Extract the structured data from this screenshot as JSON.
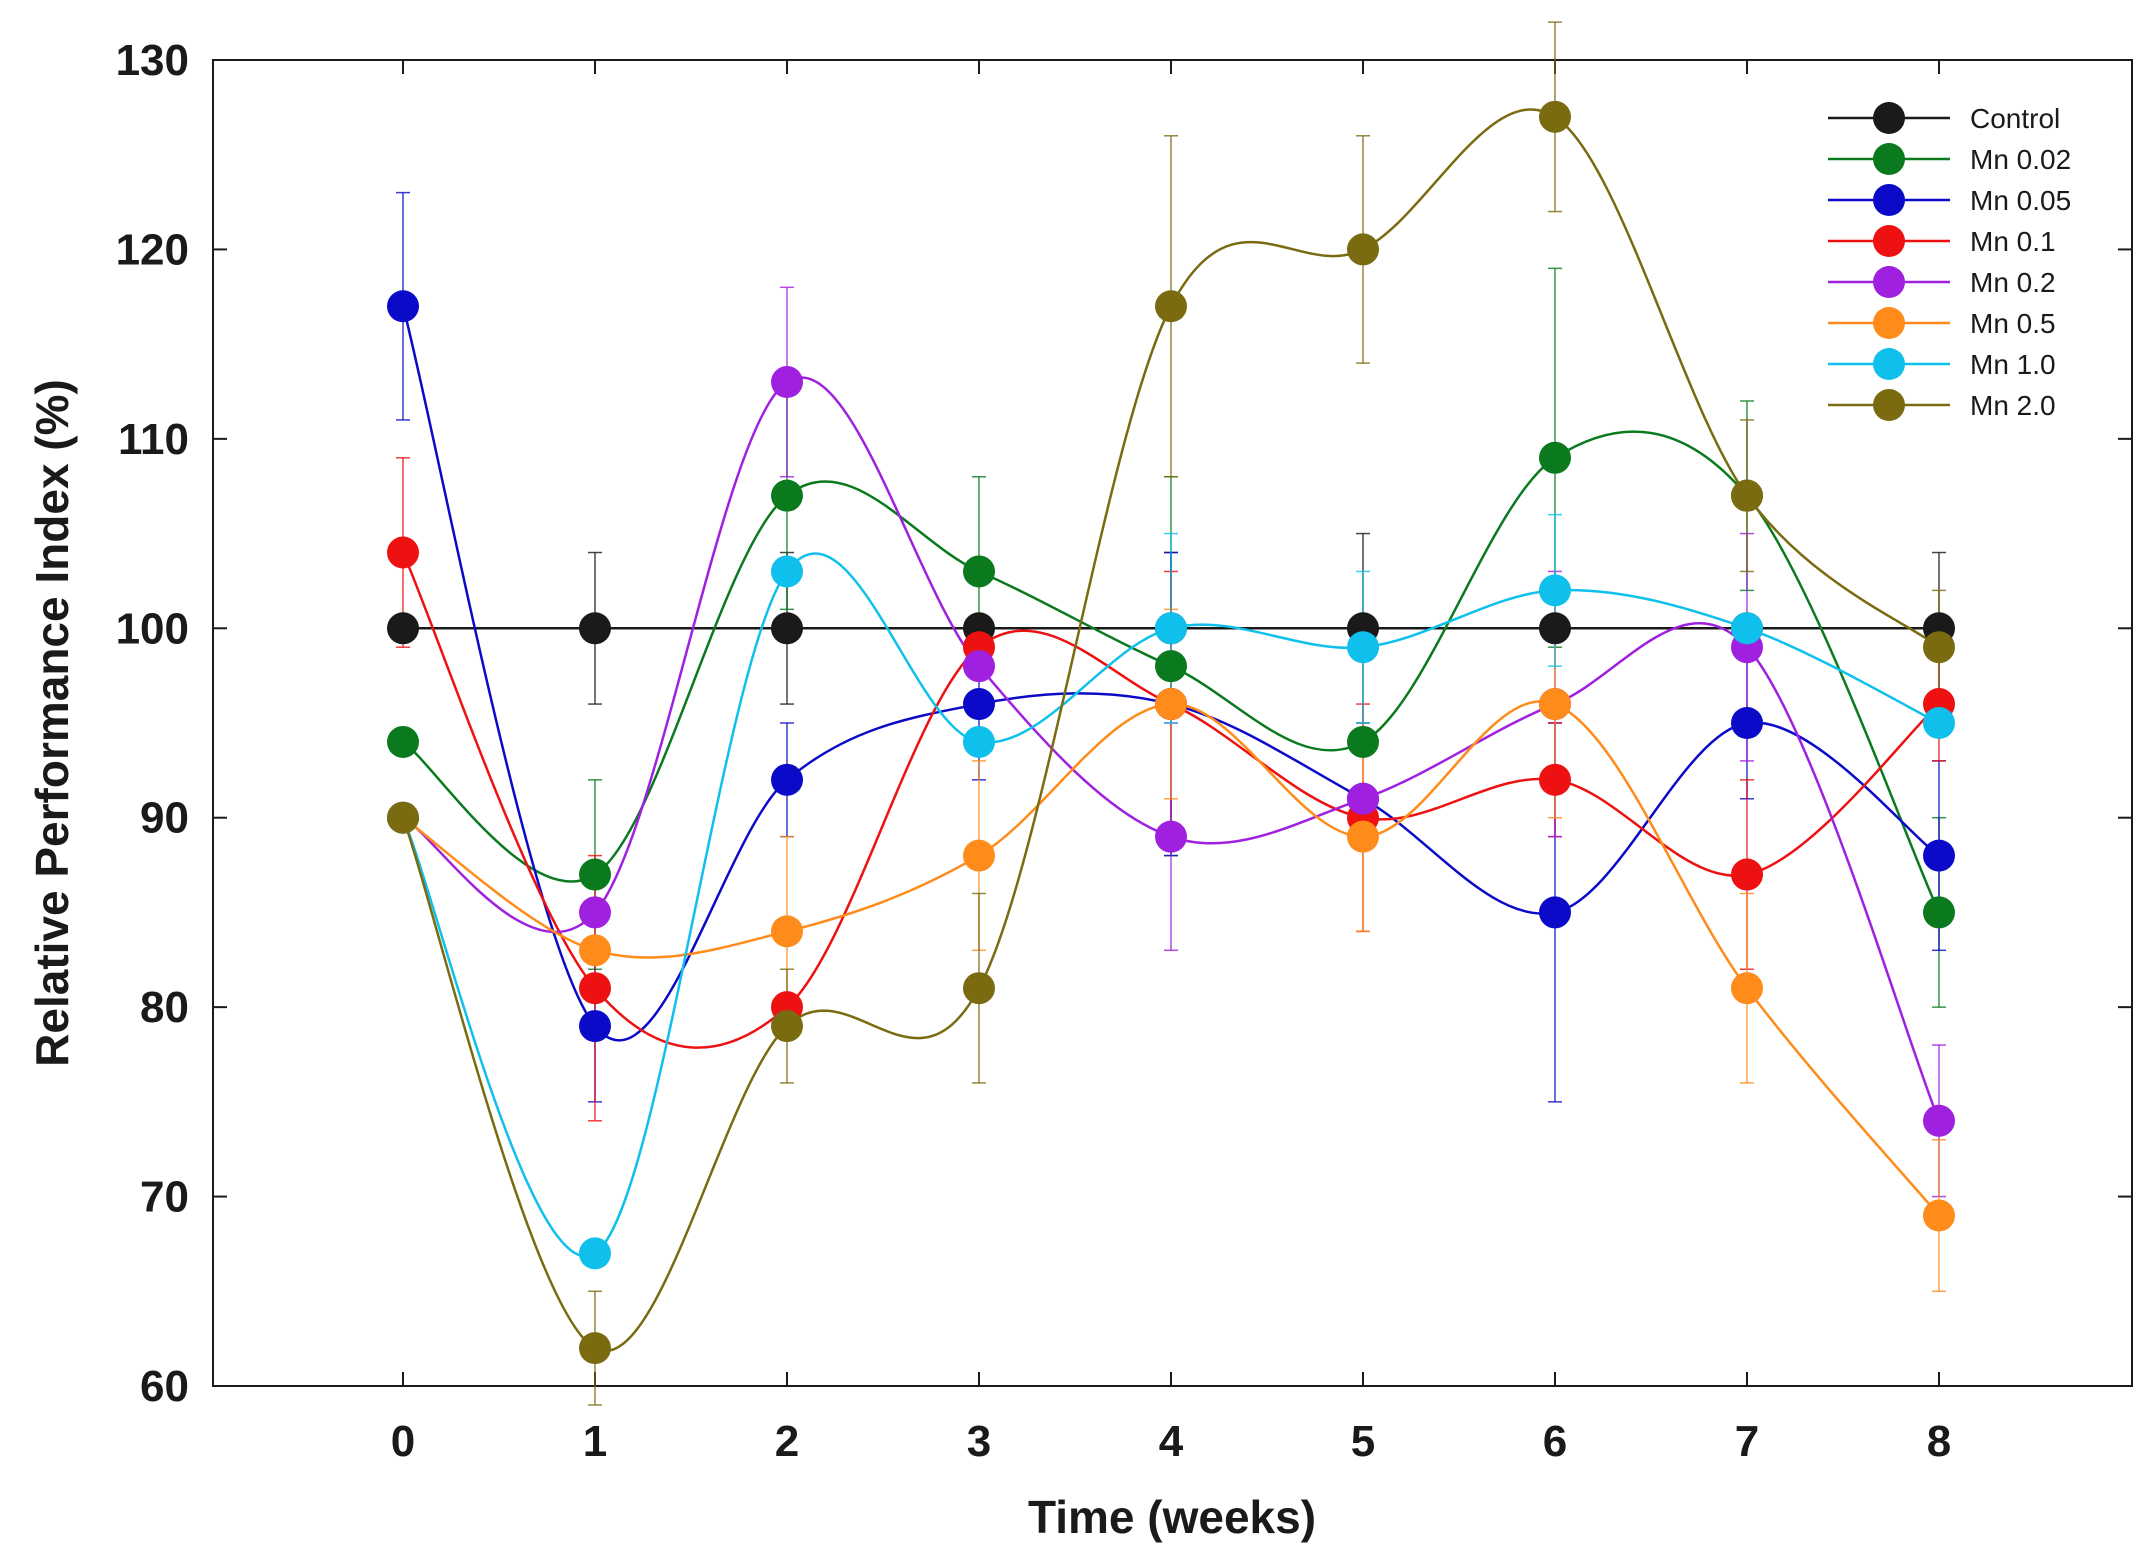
{
  "chart_data": {
    "type": "scatter",
    "title": "",
    "xlabel": "Time (weeks)",
    "ylabel": "Relative Performance Index  (%)",
    "x": [
      0,
      1,
      2,
      3,
      4,
      5,
      6,
      7,
      8
    ],
    "xlim": [
      -1,
      9
    ],
    "ylim": [
      60,
      130
    ],
    "xticks": [
      "0",
      "1",
      "2",
      "3",
      "4",
      "5",
      "6",
      "7",
      "8"
    ],
    "yticks": [
      "60",
      "70",
      "80",
      "90",
      "100",
      "110",
      "120",
      "130"
    ],
    "legend_position": "top-right",
    "curves": "smoothed spline through means, error bars shown",
    "series": [
      {
        "name": "Control",
        "color": "#1a1a1a",
        "values": [
          100,
          100,
          100,
          100,
          100,
          100,
          100,
          100,
          100
        ],
        "errors": [
          0,
          4,
          4,
          0,
          4,
          5,
          0,
          0,
          4
        ]
      },
      {
        "name": "Mn 0.02",
        "color": "#0b7a1f",
        "values": [
          94,
          87,
          107,
          103,
          98,
          94,
          109,
          107,
          85
        ],
        "errors": [
          0,
          5,
          6,
          5,
          10,
          0,
          10,
          5,
          5
        ]
      },
      {
        "name": "Mn 0.05",
        "color": "#0a0ac8",
        "values": [
          117,
          79,
          92,
          96,
          96,
          91,
          85,
          95,
          88
        ],
        "errors": [
          6,
          4,
          3,
          4,
          8,
          0,
          10,
          4,
          5
        ]
      },
      {
        "name": "Mn 0.1",
        "color": "#ee1111",
        "values": [
          104,
          81,
          80,
          99,
          96,
          90,
          92,
          87,
          96
        ],
        "errors": [
          5,
          7,
          0,
          0,
          7,
          6,
          3,
          5,
          3
        ]
      },
      {
        "name": "Mn 0.2",
        "color": "#a020e0",
        "values": [
          90,
          85,
          113,
          98,
          89,
          91,
          96,
          99,
          74
        ],
        "errors": [
          0,
          0,
          5,
          0,
          6,
          0,
          7,
          6,
          4
        ]
      },
      {
        "name": "Mn 0.5",
        "color": "#ff8c1a",
        "values": [
          90,
          83,
          84,
          88,
          96,
          89,
          96,
          81,
          69
        ],
        "errors": [
          0,
          0,
          5,
          5,
          5,
          5,
          6,
          5,
          4
        ]
      },
      {
        "name": "Mn 1.0",
        "color": "#10c0ec",
        "values": [
          90,
          67,
          103,
          94,
          100,
          99,
          102,
          100,
          95
        ],
        "errors": [
          0,
          0,
          0,
          0,
          5,
          4,
          4,
          0,
          0
        ]
      },
      {
        "name": "Mn 2.0",
        "color": "#7a6a10",
        "values": [
          90,
          62,
          79,
          81,
          117,
          120,
          127,
          107,
          99
        ],
        "errors": [
          0,
          3,
          3,
          5,
          9,
          6,
          5,
          4,
          3
        ]
      }
    ]
  }
}
